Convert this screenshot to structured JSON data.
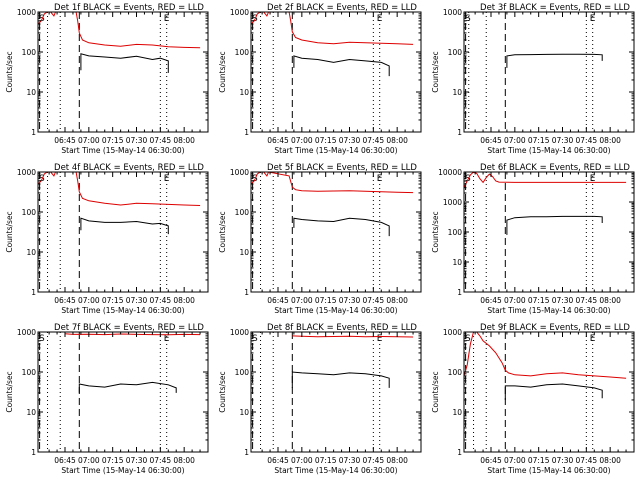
{
  "figure": {
    "xlabel": "Start Time (15-May-14 06:30:00)",
    "ylabel": "Counts/sec",
    "colors": {
      "events": "#000000",
      "lld": "#dd0000",
      "frame": "#000000"
    },
    "xticks": [
      "06:45",
      "07:00",
      "07:15",
      "07:30",
      "07:45",
      "08:00"
    ],
    "yticks": [
      "1",
      "10",
      "100",
      "1000"
    ]
  },
  "chart_data": [
    {
      "type": "line",
      "title": "Det 1f BLACK = Events, RED = LLD",
      "marker_s": "S",
      "marker_e": "E",
      "xlabel": "Start Time (15-May-14 06:30:00)",
      "ylabel": "Counts/sec",
      "x_ticks": [
        "06:45",
        "07:00",
        "07:15",
        "07:30",
        "07:45",
        "08:00"
      ],
      "y_ticks": [
        "1",
        "10",
        "100",
        "1000"
      ],
      "x_range_min": [
        -2,
        105
      ],
      "ylim": [
        1,
        1000
      ],
      "y_scale": "log",
      "series": [
        {
          "name": "LLD",
          "color": "#dd0000",
          "x": [
            -2,
            0,
            2,
            4,
            6,
            8,
            9,
            22,
            23,
            24,
            26,
            30,
            40,
            50,
            60,
            70,
            80,
            90,
            100
          ],
          "y": [
            500,
            600,
            900,
            1000,
            1000,
            800,
            1000,
            1000,
            600,
            300,
            200,
            170,
            150,
            140,
            155,
            150,
            135,
            130,
            128
          ]
        },
        {
          "name": "Events",
          "color": "#000000",
          "x": [
            25,
            25,
            30,
            40,
            50,
            60,
            70,
            75,
            80,
            80
          ],
          "y": [
            35,
            90,
            80,
            75,
            70,
            78,
            65,
            70,
            60,
            30
          ]
        }
      ],
      "vlines_dashed": [
        -1,
        24
      ],
      "vlines_dotted": [
        4,
        12,
        75,
        79
      ]
    },
    {
      "type": "line",
      "title": "Det 2f BLACK = Events, RED = LLD",
      "marker_s": "S",
      "marker_e": "E",
      "xlabel": "Start Time (15-May-14 06:30:00)",
      "ylabel": "Counts/sec",
      "x_ticks": [
        "06:45",
        "07:00",
        "07:15",
        "07:30",
        "07:45",
        "08:00"
      ],
      "y_ticks": [
        "1",
        "10",
        "100",
        "1000"
      ],
      "x_range_min": [
        -2,
        105
      ],
      "ylim": [
        1,
        1000
      ],
      "y_scale": "log",
      "series": [
        {
          "name": "LLD",
          "color": "#dd0000",
          "x": [
            -2,
            0,
            2,
            4,
            6,
            8,
            9,
            22,
            23,
            24,
            26,
            30,
            40,
            50,
            60,
            70,
            80,
            90,
            100
          ],
          "y": [
            500,
            600,
            900,
            1000,
            1000,
            800,
            1000,
            1000,
            600,
            320,
            230,
            200,
            170,
            160,
            175,
            170,
            165,
            160,
            155
          ]
        },
        {
          "name": "Events",
          "color": "#000000",
          "x": [
            25,
            25,
            30,
            40,
            50,
            60,
            70,
            80,
            85,
            85
          ],
          "y": [
            40,
            80,
            70,
            65,
            55,
            65,
            60,
            55,
            45,
            25
          ]
        }
      ],
      "vlines_dashed": [
        -1,
        24
      ],
      "vlines_dotted": [
        4,
        12,
        75,
        79
      ]
    },
    {
      "type": "line",
      "title": "Det 3f BLACK = Events, RED = LLD",
      "marker_s": "S",
      "marker_e": "E",
      "xlabel": "Start Time (15-May-14 06:30:00)",
      "ylabel": "Counts/sec",
      "x_ticks": [
        "06:45",
        "07:00",
        "07:15",
        "07:30",
        "07:45",
        "08:00"
      ],
      "y_ticks": [
        "1",
        "10",
        "100",
        "1000"
      ],
      "x_range_min": [
        -2,
        105
      ],
      "ylim": [
        1,
        1000
      ],
      "y_scale": "log",
      "series": [
        {
          "name": "Events",
          "color": "#000000",
          "x": [
            25,
            25,
            30,
            40,
            50,
            60,
            70,
            80,
            85,
            85
          ],
          "y": [
            40,
            80,
            85,
            86,
            87,
            88,
            88,
            87,
            85,
            60
          ]
        }
      ],
      "vlines_dashed": [
        -1,
        24
      ],
      "vlines_dotted": [
        1,
        12,
        75,
        79
      ]
    },
    {
      "type": "line",
      "title": "Det 4f BLACK = Events, RED = LLD",
      "marker_s": "S",
      "marker_e": "E",
      "xlabel": "Start Time (15-May-14 06:30:00)",
      "ylabel": "Counts/sec",
      "x_ticks": [
        "06:45",
        "07:00",
        "07:15",
        "07:30",
        "07:45",
        "08:00"
      ],
      "y_ticks": [
        "1",
        "10",
        "100",
        "1000"
      ],
      "x_range_min": [
        -2,
        105
      ],
      "ylim": [
        1,
        1000
      ],
      "y_scale": "log",
      "series": [
        {
          "name": "LLD",
          "color": "#dd0000",
          "x": [
            -2,
            0,
            2,
            4,
            6,
            8,
            9,
            22,
            23,
            24,
            26,
            30,
            40,
            50,
            60,
            70,
            80,
            90,
            100
          ],
          "y": [
            500,
            600,
            900,
            1000,
            1000,
            800,
            1000,
            1000,
            600,
            320,
            220,
            190,
            165,
            150,
            165,
            160,
            155,
            150,
            145
          ]
        },
        {
          "name": "Events",
          "color": "#000000",
          "x": [
            25,
            25,
            30,
            40,
            50,
            60,
            70,
            75,
            80,
            80
          ],
          "y": [
            35,
            70,
            60,
            55,
            55,
            58,
            50,
            52,
            45,
            28
          ]
        }
      ],
      "vlines_dashed": [
        -1,
        24
      ],
      "vlines_dotted": [
        4,
        12,
        75,
        79
      ]
    },
    {
      "type": "line",
      "title": "Det 5f BLACK = Events, RED = LLD",
      "marker_s": "S",
      "marker_e": "E",
      "xlabel": "Start Time (15-May-14 06:30:00)",
      "ylabel": "Counts/sec",
      "x_ticks": [
        "06:45",
        "07:00",
        "07:15",
        "07:30",
        "07:45",
        "08:00"
      ],
      "y_ticks": [
        "1",
        "10",
        "100",
        "1000"
      ],
      "x_range_min": [
        -2,
        105
      ],
      "ylim": [
        1,
        1000
      ],
      "y_scale": "log",
      "series": [
        {
          "name": "LLD",
          "color": "#dd0000",
          "x": [
            -2,
            0,
            2,
            4,
            6,
            8,
            9,
            22,
            24,
            26,
            30,
            40,
            50,
            60,
            70,
            80,
            90,
            100
          ],
          "y": [
            500,
            600,
            900,
            1000,
            1000,
            800,
            1000,
            800,
            420,
            360,
            340,
            330,
            335,
            340,
            330,
            320,
            310,
            305
          ]
        },
        {
          "name": "Events",
          "color": "#000000",
          "x": [
            25,
            25,
            30,
            40,
            50,
            60,
            70,
            80,
            85,
            85
          ],
          "y": [
            40,
            70,
            65,
            60,
            58,
            70,
            65,
            55,
            45,
            25
          ]
        }
      ],
      "vlines_dashed": [
        -1,
        24
      ],
      "vlines_dotted": [
        4,
        12,
        75,
        79
      ]
    },
    {
      "type": "line",
      "title": "Det 6f BLACK = Events, RED = LLD",
      "marker_s": "S",
      "marker_e": "E",
      "xlabel": "Start Time (15-May-14 06:30:00)",
      "ylabel": "Counts/sec",
      "x_ticks": [
        "06:45",
        "07:00",
        "07:15",
        "07:30",
        "07:45",
        "08:00"
      ],
      "y_ticks": [
        "1",
        "10",
        "100",
        "1000"
      ],
      "x_range_min": [
        -2,
        105
      ],
      "ylim": [
        1,
        10000
      ],
      "y_scale": "log",
      "series": [
        {
          "name": "LLD",
          "color": "#dd0000",
          "x": [
            -2,
            0,
            2,
            4,
            6,
            8,
            10,
            12,
            14,
            16,
            18,
            20,
            30,
            40,
            50,
            60,
            70,
            80,
            90,
            100
          ],
          "y": [
            3000,
            5000,
            8000,
            10000,
            9000,
            6000,
            4500,
            6500,
            8500,
            7000,
            5000,
            4600,
            4500,
            4500,
            4500,
            4500,
            4500,
            4500,
            4500,
            4500
          ]
        },
        {
          "name": "Events",
          "color": "#000000",
          "x": [
            25,
            25,
            30,
            40,
            50,
            60,
            70,
            80,
            85,
            85
          ],
          "y": [
            80,
            250,
            300,
            320,
            320,
            330,
            330,
            330,
            320,
            200
          ]
        }
      ],
      "vlines_dashed": [
        -1,
        24
      ],
      "vlines_dotted": [
        4,
        12,
        75,
        79
      ]
    },
    {
      "type": "line",
      "title": "Det 7f BLACK = Events, RED = LLD",
      "marker_s": "S",
      "marker_e": "E",
      "xlabel": "Start Time (15-May-14 06:30:00)",
      "ylabel": "Counts/sec",
      "x_ticks": [
        "06:45",
        "07:00",
        "07:15",
        "07:30",
        "07:45",
        "08:00"
      ],
      "y_ticks": [
        "1",
        "10",
        "100",
        "1000"
      ],
      "x_range_min": [
        -2,
        105
      ],
      "ylim": [
        1,
        1000
      ],
      "y_scale": "log",
      "series": [
        {
          "name": "LLD",
          "color": "#dd0000",
          "x": [
            15,
            20,
            30,
            40,
            50,
            60,
            70,
            80,
            90,
            100
          ],
          "y": [
            900,
            870,
            880,
            860,
            890,
            870,
            860,
            850,
            870,
            860
          ]
        },
        {
          "name": "Events",
          "color": "#000000",
          "x": [
            24,
            24,
            30,
            40,
            50,
            60,
            70,
            80,
            85,
            85
          ],
          "y": [
            30,
            50,
            45,
            42,
            50,
            48,
            55,
            48,
            40,
            30
          ]
        }
      ],
      "vlines_dashed": [
        -1,
        24
      ],
      "vlines_dotted": [
        4,
        12,
        75,
        79
      ]
    },
    {
      "type": "line",
      "title": "Det 8f BLACK = Events, RED = LLD",
      "marker_s": "S",
      "marker_e": "E",
      "xlabel": "Start Time (15-May-14 06:30:00)",
      "ylabel": "Counts/sec",
      "x_ticks": [
        "06:45",
        "07:00",
        "07:15",
        "07:30",
        "07:45",
        "08:00"
      ],
      "y_ticks": [
        "1",
        "10",
        "100",
        "1000"
      ],
      "x_range_min": [
        -2,
        105
      ],
      "ylim": [
        1,
        1000
      ],
      "y_scale": "log",
      "series": [
        {
          "name": "LLD",
          "color": "#dd0000",
          "x": [
            24,
            30,
            40,
            50,
            60,
            70,
            80,
            90,
            100
          ],
          "y": [
            800,
            780,
            760,
            770,
            780,
            760,
            770,
            760,
            750
          ]
        },
        {
          "name": "Events",
          "color": "#000000",
          "x": [
            24,
            24,
            30,
            40,
            50,
            60,
            70,
            80,
            85,
            85
          ],
          "y": [
            40,
            100,
            95,
            90,
            85,
            95,
            90,
            80,
            70,
            40
          ]
        }
      ],
      "vlines_dashed": [
        -1,
        24
      ],
      "vlines_dotted": [
        4,
        12,
        75,
        79
      ]
    },
    {
      "type": "line",
      "title": "Det 9f BLACK = Events, RED = LLD",
      "marker_s": "S",
      "marker_e": "E",
      "xlabel": "Start Time (15-May-14 06:30:00)",
      "ylabel": "Counts/sec",
      "x_ticks": [
        "06:45",
        "07:00",
        "07:15",
        "07:30",
        "07:45",
        "08:00"
      ],
      "y_ticks": [
        "1",
        "10",
        "100",
        "1000"
      ],
      "x_range_min": [
        -2,
        105
      ],
      "ylim": [
        1,
        1000
      ],
      "y_scale": "log",
      "series": [
        {
          "name": "LLD",
          "color": "#dd0000",
          "x": [
            -2,
            0,
            2,
            4,
            6,
            8,
            10,
            14,
            18,
            22,
            24,
            26,
            30,
            40,
            50,
            60,
            70,
            80,
            90,
            100
          ],
          "y": [
            80,
            150,
            500,
            1000,
            1000,
            800,
            600,
            450,
            300,
            170,
            110,
            95,
            85,
            80,
            90,
            95,
            85,
            80,
            75,
            70
          ]
        },
        {
          "name": "Events",
          "color": "#000000",
          "x": [
            24,
            24,
            30,
            40,
            50,
            60,
            70,
            80,
            85,
            85
          ],
          "y": [
            20,
            45,
            45,
            42,
            48,
            50,
            45,
            40,
            35,
            22
          ]
        }
      ],
      "vlines_dashed": [
        -1,
        24
      ],
      "vlines_dotted": [
        4,
        12,
        75,
        79
      ]
    }
  ]
}
